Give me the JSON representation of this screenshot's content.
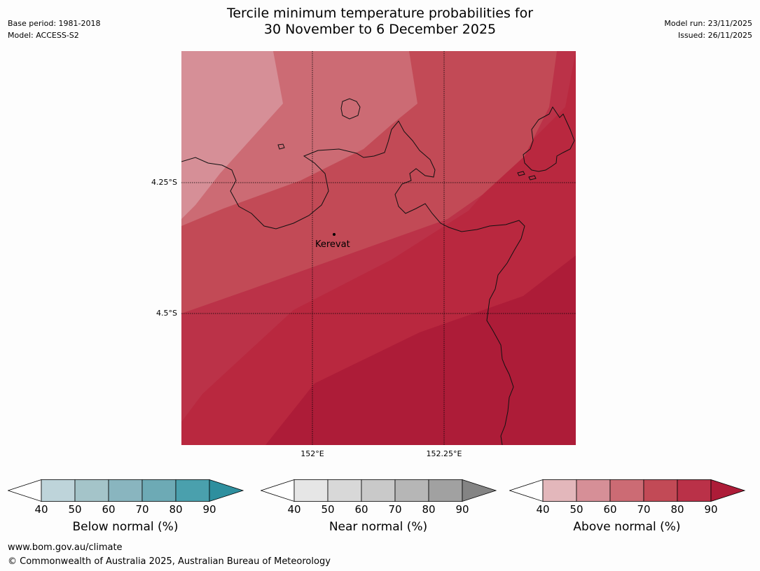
{
  "header": {
    "title_line1": "Tercile minimum temperature probabilities for",
    "title_line2": "30 November to 6 December 2025",
    "base_period": "Base period: 1981-2018",
    "model": "Model: ACCESS-S2",
    "model_run": "Model run: 23/11/2025",
    "issued": "Issued: 26/11/2025"
  },
  "map": {
    "place_label": "Kerevat",
    "lat_labels": [
      "4.25°S",
      "4.5°S"
    ],
    "lon_labels": [
      "152°E",
      "152.25°E"
    ]
  },
  "colorbars": [
    {
      "label": "Below normal (%)",
      "ticks": [
        "40",
        "50",
        "60",
        "70",
        "80",
        "90"
      ],
      "colors": [
        "#bed4da",
        "#a4c4c9",
        "#89b5bf",
        "#6daab5",
        "#4aa0ad",
        "#2e8f9e"
      ]
    },
    {
      "label": "Near normal (%)",
      "ticks": [
        "40",
        "50",
        "60",
        "70",
        "80",
        "90"
      ],
      "colors": [
        "#e6e6e6",
        "#d8d8d8",
        "#c9c9c9",
        "#b6b6b6",
        "#a1a1a1",
        "#848484"
      ]
    },
    {
      "label": "Above normal (%)",
      "ticks": [
        "40",
        "50",
        "60",
        "70",
        "80",
        "90"
      ],
      "colors": [
        "#e3b7bb",
        "#d68f97",
        "#cc6b74",
        "#c24a56",
        "#ba3148",
        "#ad1c38"
      ]
    }
  ],
  "footer": {
    "url": "www.bom.gov.au/climate",
    "copyright": "© Commonwealth of Australia 2025, Australian Bureau of Meteorology"
  }
}
